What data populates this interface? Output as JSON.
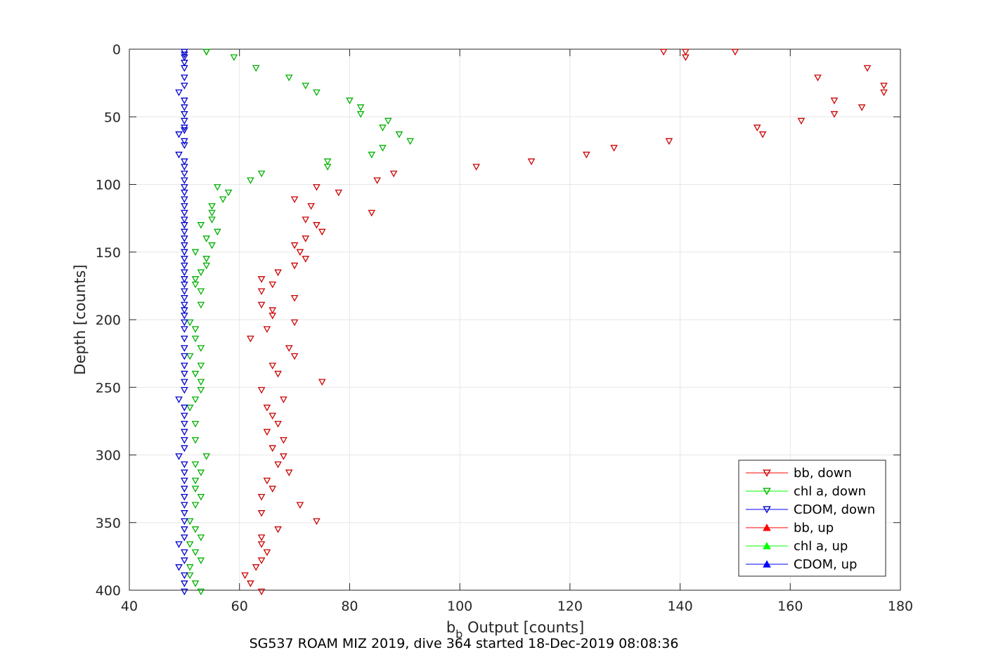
{
  "caption": "SG537 ROAM MIZ 2019, dive 364 started 18-Dec-2019 08:08:36",
  "chart_data": {
    "type": "scatter",
    "xlabel": "b",
    "xlabel_sub": "b",
    "xlabel_rest": " Output [counts]",
    "ylabel": "Depth [counts]",
    "xlim": [
      40,
      180
    ],
    "ylim": [
      0,
      400
    ],
    "y_reversed": true,
    "grid": true,
    "legend_position": "bottom-right",
    "x_ticks": [
      "40",
      "60",
      "80",
      "100",
      "120",
      "140",
      "160",
      "180"
    ],
    "y_ticks": [
      "0",
      "50",
      "100",
      "150",
      "200",
      "250",
      "300",
      "350",
      "400"
    ],
    "legend": [
      {
        "label": "bb, down",
        "color": "#ff0000",
        "marker": "down"
      },
      {
        "label": "chl a, down",
        "color": "#00ff00",
        "marker": "down"
      },
      {
        "label": "CDOM, down",
        "color": "#0000ff",
        "marker": "down"
      },
      {
        "label": "bb, up",
        "color": "#ff0000",
        "marker": "up"
      },
      {
        "label": "chl a, up",
        "color": "#00ff00",
        "marker": "up"
      },
      {
        "label": "CDOM, up",
        "color": "#0000ff",
        "marker": "up"
      }
    ],
    "series": [
      {
        "name": "bb, down",
        "color": "#ff0000",
        "marker": "down",
        "points": [
          [
            137,
            2
          ],
          [
            141,
            2
          ],
          [
            150,
            2
          ],
          [
            141,
            6
          ],
          [
            174,
            14
          ],
          [
            165,
            21
          ],
          [
            177,
            27
          ],
          [
            177,
            32
          ],
          [
            168,
            38
          ],
          [
            173,
            43
          ],
          [
            168,
            48
          ],
          [
            162,
            53
          ],
          [
            154,
            58
          ],
          [
            155,
            63
          ],
          [
            138,
            68
          ],
          [
            128,
            73
          ],
          [
            123,
            78
          ],
          [
            113,
            83
          ],
          [
            103,
            87
          ],
          [
            88,
            92
          ],
          [
            85,
            97
          ],
          [
            74,
            102
          ],
          [
            78,
            106
          ],
          [
            70,
            111
          ],
          [
            73,
            116
          ],
          [
            84,
            121
          ],
          [
            72,
            126
          ],
          [
            74,
            130
          ],
          [
            75,
            135
          ],
          [
            72,
            140
          ],
          [
            70,
            145
          ],
          [
            71,
            150
          ],
          [
            72,
            155
          ],
          [
            70,
            160
          ],
          [
            67,
            165
          ],
          [
            64,
            170
          ],
          [
            66,
            174
          ],
          [
            64,
            179
          ],
          [
            70,
            184
          ],
          [
            64,
            189
          ],
          [
            66,
            193
          ],
          [
            66,
            197
          ],
          [
            70,
            202
          ],
          [
            65,
            207
          ],
          [
            62,
            214
          ],
          [
            69,
            221
          ],
          [
            70,
            227
          ],
          [
            66,
            234
          ],
          [
            67,
            240
          ],
          [
            75,
            246
          ],
          [
            64,
            252
          ],
          [
            68,
            259
          ],
          [
            65,
            265
          ],
          [
            66,
            271
          ],
          [
            67,
            277
          ],
          [
            65,
            283
          ],
          [
            68,
            289
          ],
          [
            66,
            295
          ],
          [
            68,
            301
          ],
          [
            67,
            307
          ],
          [
            69,
            313
          ],
          [
            65,
            319
          ],
          [
            66,
            325
          ],
          [
            64,
            331
          ],
          [
            71,
            337
          ],
          [
            64,
            343
          ],
          [
            74,
            349
          ],
          [
            67,
            355
          ],
          [
            64,
            361
          ],
          [
            64,
            366
          ],
          [
            65,
            372
          ],
          [
            64,
            378
          ],
          [
            63,
            383
          ],
          [
            61,
            389
          ],
          [
            62,
            395
          ],
          [
            64,
            401
          ]
        ]
      },
      {
        "name": "chl a, down",
        "color": "#00ff00",
        "marker": "down",
        "points": [
          [
            54,
            2
          ],
          [
            54,
            2
          ],
          [
            59,
            6
          ],
          [
            63,
            14
          ],
          [
            69,
            21
          ],
          [
            72,
            27
          ],
          [
            74,
            32
          ],
          [
            80,
            38
          ],
          [
            82,
            43
          ],
          [
            82,
            48
          ],
          [
            87,
            53
          ],
          [
            86,
            58
          ],
          [
            89,
            63
          ],
          [
            91,
            68
          ],
          [
            86,
            73
          ],
          [
            84,
            78
          ],
          [
            76,
            83
          ],
          [
            76,
            87
          ],
          [
            64,
            92
          ],
          [
            62,
            97
          ],
          [
            56,
            102
          ],
          [
            58,
            106
          ],
          [
            57,
            111
          ],
          [
            55,
            116
          ],
          [
            55,
            121
          ],
          [
            55,
            126
          ],
          [
            53,
            130
          ],
          [
            56,
            135
          ],
          [
            54,
            140
          ],
          [
            55,
            145
          ],
          [
            52,
            150
          ],
          [
            54,
            155
          ],
          [
            54,
            160
          ],
          [
            53,
            165
          ],
          [
            52,
            170
          ],
          [
            52,
            174
          ],
          [
            53,
            179
          ],
          [
            53,
            189
          ],
          [
            51,
            202
          ],
          [
            52,
            207
          ],
          [
            52,
            214
          ],
          [
            53,
            221
          ],
          [
            51,
            227
          ],
          [
            53,
            234
          ],
          [
            52,
            240
          ],
          [
            53,
            246
          ],
          [
            53,
            252
          ],
          [
            52,
            259
          ],
          [
            51,
            265
          ],
          [
            52,
            277
          ],
          [
            52,
            289
          ],
          [
            54,
            301
          ],
          [
            52,
            307
          ],
          [
            53,
            313
          ],
          [
            52,
            319
          ],
          [
            52,
            325
          ],
          [
            53,
            331
          ],
          [
            52,
            337
          ],
          [
            51,
            349
          ],
          [
            52,
            355
          ],
          [
            53,
            361
          ],
          [
            51,
            366
          ],
          [
            52,
            372
          ],
          [
            53,
            378
          ],
          [
            51,
            383
          ],
          [
            51,
            389
          ],
          [
            52,
            395
          ],
          [
            53,
            401
          ]
        ]
      },
      {
        "name": "CDOM, down",
        "color": "#0000ff",
        "marker": "down",
        "points": [
          [
            50,
            2
          ],
          [
            50,
            4
          ],
          [
            50,
            6
          ],
          [
            50,
            10
          ],
          [
            50,
            14
          ],
          [
            50,
            21
          ],
          [
            50,
            27
          ],
          [
            49,
            32
          ],
          [
            50,
            38
          ],
          [
            50,
            43
          ],
          [
            50,
            48
          ],
          [
            50,
            53
          ],
          [
            50,
            58
          ],
          [
            50,
            60
          ],
          [
            49,
            63
          ],
          [
            50,
            68
          ],
          [
            50,
            71
          ],
          [
            49,
            78
          ],
          [
            50,
            83
          ],
          [
            50,
            87
          ],
          [
            50,
            92
          ],
          [
            50,
            97
          ],
          [
            50,
            102
          ],
          [
            50,
            106
          ],
          [
            50,
            111
          ],
          [
            50,
            116
          ],
          [
            50,
            121
          ],
          [
            50,
            126
          ],
          [
            50,
            130
          ],
          [
            50,
            135
          ],
          [
            50,
            140
          ],
          [
            50,
            145
          ],
          [
            50,
            150
          ],
          [
            50,
            155
          ],
          [
            50,
            160
          ],
          [
            50,
            165
          ],
          [
            50,
            170
          ],
          [
            50,
            174
          ],
          [
            50,
            179
          ],
          [
            50,
            184
          ],
          [
            50,
            189
          ],
          [
            50,
            193
          ],
          [
            50,
            197
          ],
          [
            50,
            202
          ],
          [
            50,
            207
          ],
          [
            50,
            214
          ],
          [
            50,
            221
          ],
          [
            50,
            227
          ],
          [
            50,
            234
          ],
          [
            50,
            240
          ],
          [
            50,
            246
          ],
          [
            50,
            252
          ],
          [
            49,
            259
          ],
          [
            50,
            265
          ],
          [
            50,
            271
          ],
          [
            50,
            277
          ],
          [
            50,
            283
          ],
          [
            50,
            289
          ],
          [
            50,
            295
          ],
          [
            49,
            301
          ],
          [
            50,
            307
          ],
          [
            50,
            313
          ],
          [
            50,
            319
          ],
          [
            50,
            325
          ],
          [
            50,
            331
          ],
          [
            50,
            337
          ],
          [
            50,
            343
          ],
          [
            50,
            349
          ],
          [
            50,
            355
          ],
          [
            50,
            361
          ],
          [
            49,
            366
          ],
          [
            50,
            372
          ],
          [
            50,
            378
          ],
          [
            49,
            383
          ],
          [
            50,
            389
          ],
          [
            50,
            395
          ],
          [
            50,
            401
          ]
        ]
      },
      {
        "name": "bb, up",
        "color": "#ff0000",
        "marker": "up",
        "points": []
      },
      {
        "name": "chl a, up",
        "color": "#00ff00",
        "marker": "up",
        "points": []
      },
      {
        "name": "CDOM, up",
        "color": "#0000ff",
        "marker": "up",
        "points": []
      }
    ]
  }
}
